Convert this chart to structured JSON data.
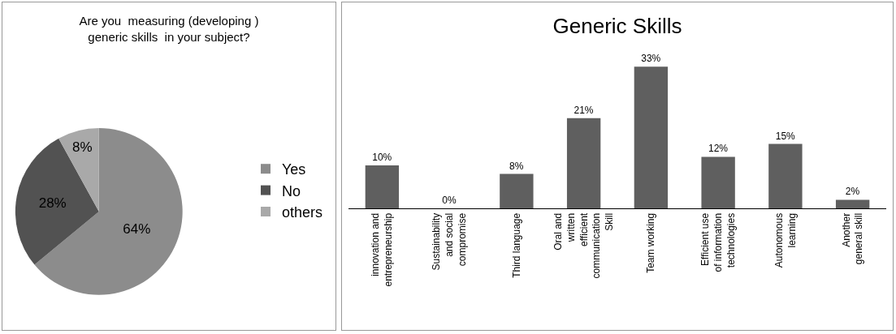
{
  "chart_data": [
    {
      "type": "pie",
      "title": "Are you  measuring (developing )\ngeneric skills  in your subject?",
      "categories": [
        "Yes",
        "No",
        "others"
      ],
      "values": [
        64,
        28,
        8
      ],
      "value_labels": [
        "64%",
        "28%",
        "8%"
      ],
      "colors": [
        "#8c8c8c",
        "#525252",
        "#a9a9a9"
      ],
      "legend": "right"
    },
    {
      "type": "bar",
      "title": "Generic Skills",
      "categories": [
        "innovation and entrepreneurship",
        "Sustainability and social compromise",
        "Third language",
        "Oral and written efficient communication Skill",
        "Team working",
        "Efficient use of information technologies",
        "Autonomous learning",
        "Another general skill"
      ],
      "values": [
        10,
        0,
        8,
        21,
        33,
        12,
        15,
        2
      ],
      "value_labels": [
        "10%",
        "0%",
        "8%",
        "21%",
        "33%",
        "12%",
        "15%",
        "2%"
      ],
      "color": "#5f5f5f"
    }
  ]
}
